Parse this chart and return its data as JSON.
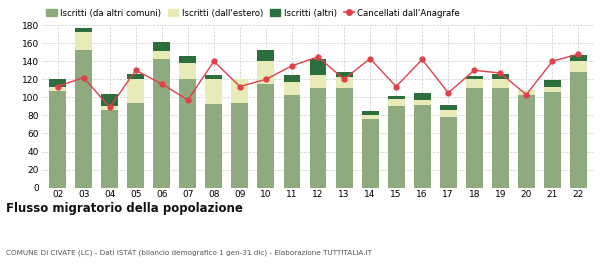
{
  "years": [
    "02",
    "03",
    "04",
    "05",
    "06",
    "07",
    "08",
    "09",
    "10",
    "11",
    "12",
    "13",
    "14",
    "15",
    "16",
    "17",
    "18",
    "19",
    "20",
    "21",
    "22"
  ],
  "iscritti_altri_comuni": [
    107,
    152,
    86,
    94,
    143,
    120,
    93,
    94,
    115,
    103,
    110,
    110,
    76,
    90,
    92,
    78,
    110,
    110,
    103,
    106,
    128
  ],
  "iscritti_estero": [
    5,
    20,
    4,
    26,
    8,
    18,
    27,
    26,
    25,
    14,
    15,
    13,
    5,
    8,
    5,
    8,
    10,
    10,
    5,
    6,
    12
  ],
  "iscritti_altri": [
    8,
    5,
    14,
    6,
    10,
    8,
    5,
    0,
    12,
    8,
    18,
    5,
    4,
    4,
    8,
    5,
    4,
    6,
    0,
    7,
    7
  ],
  "cancellati": [
    112,
    122,
    89,
    130,
    115,
    97,
    140,
    112,
    120,
    135,
    145,
    120,
    143,
    112,
    142,
    105,
    130,
    127,
    103,
    140,
    148
  ],
  "bar_color_main": "#8faa7e",
  "bar_color_estero": "#e8ebb8",
  "bar_color_altri": "#2d6e3e",
  "line_color": "#e0404a",
  "bg_color": "#ffffff",
  "grid_color": "#cccccc",
  "title": "Flusso migratorio della popolazione",
  "subtitle": "COMUNE DI CIVATE (LC) - Dati ISTAT (bilancio demografico 1 gen-31 dic) - Elaborazione TUTTITALIA.IT",
  "legend_labels": [
    "Iscritti (da altri comuni)",
    "Iscritti (dall'estero)",
    "Iscritti (altri)",
    "Cancellati dall'Anagrafe"
  ],
  "ylim": [
    0,
    180
  ],
  "yticks": [
    0,
    20,
    40,
    60,
    80,
    100,
    120,
    140,
    160,
    180
  ]
}
